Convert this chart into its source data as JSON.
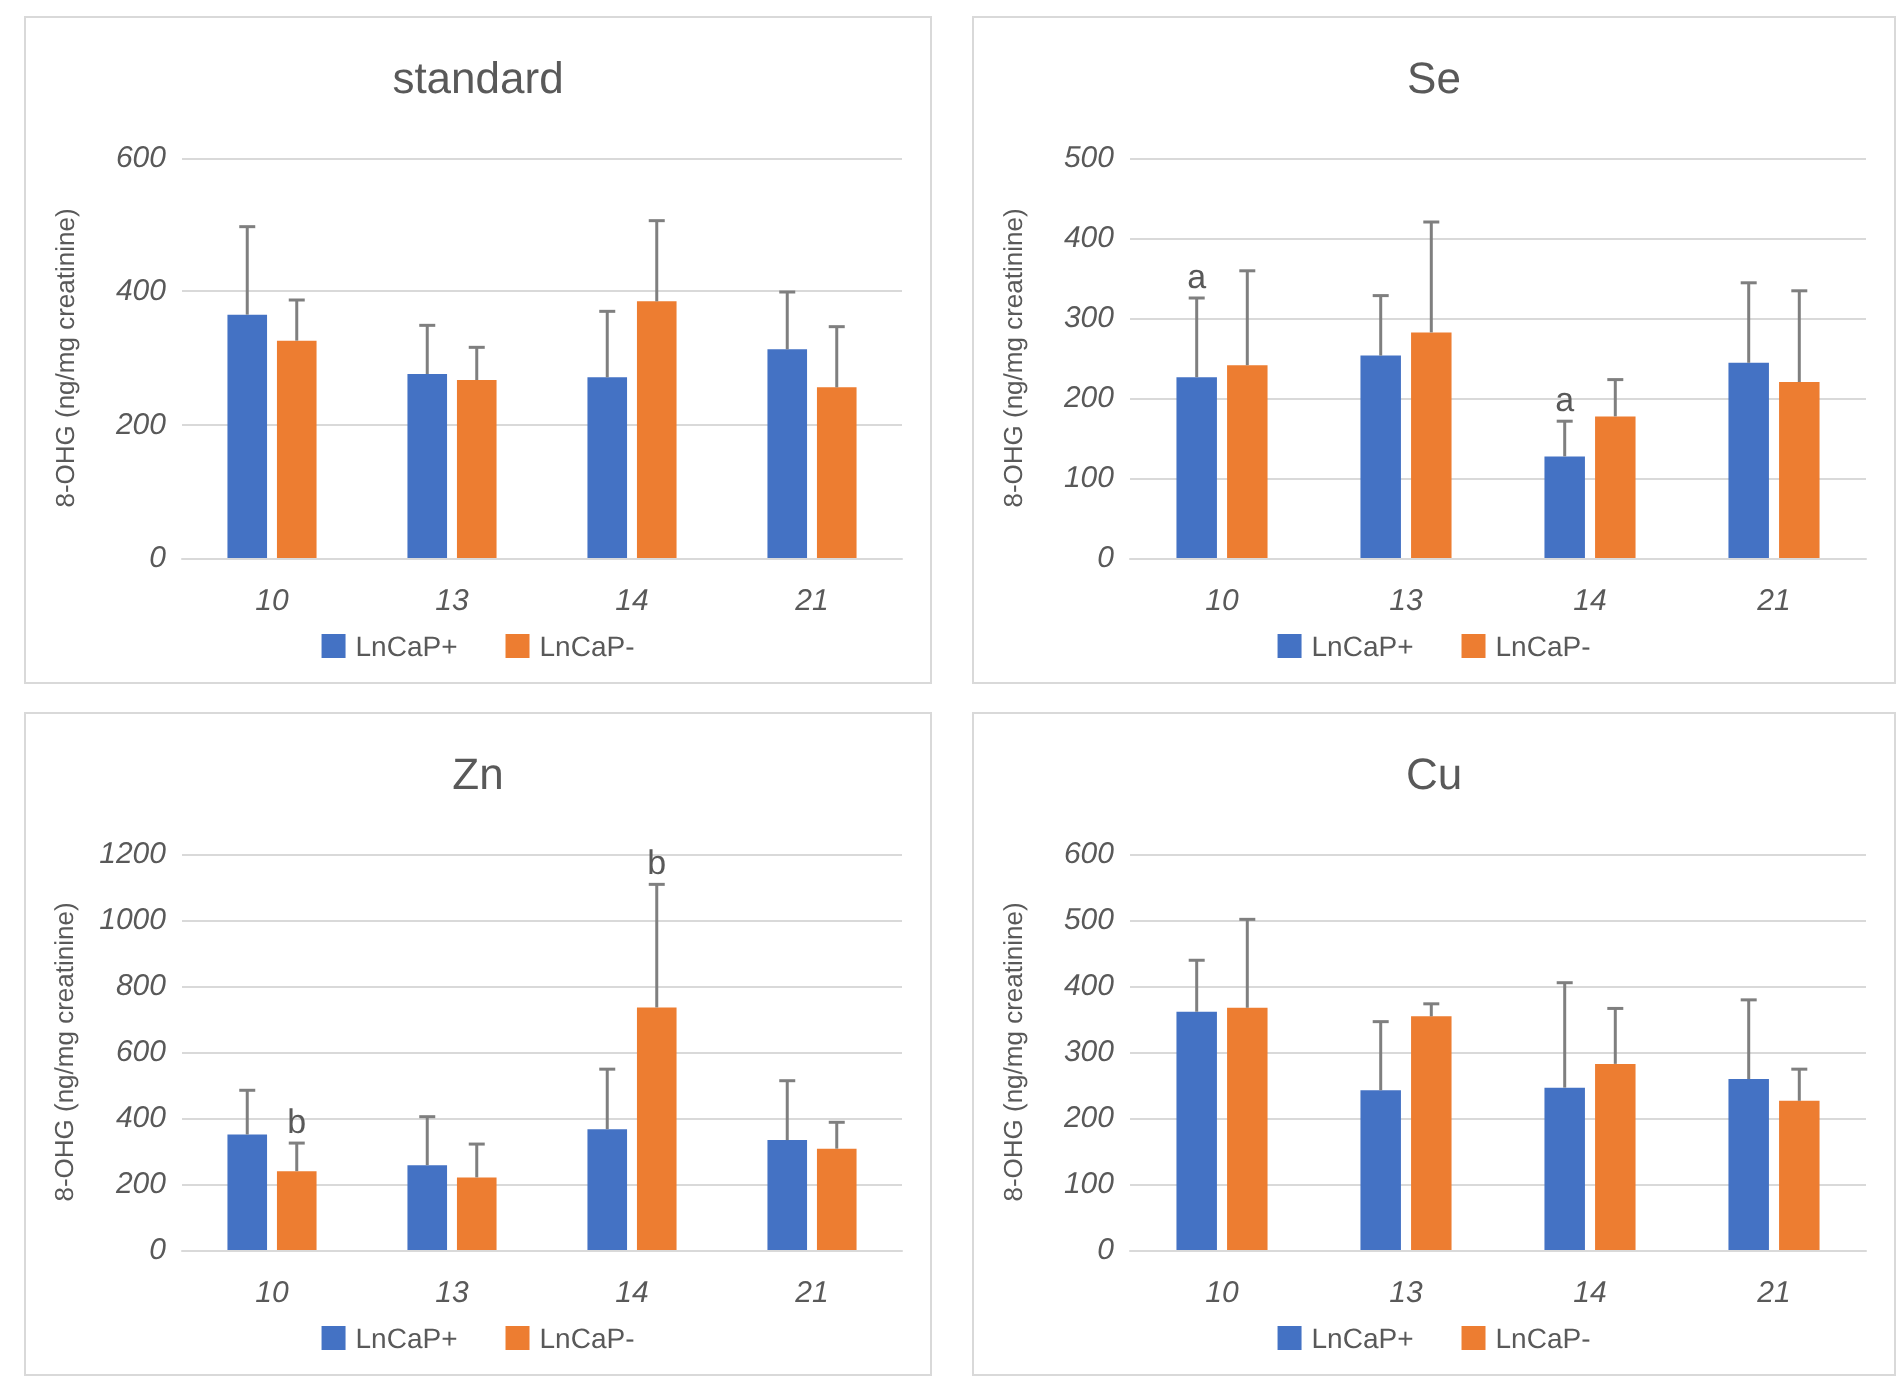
{
  "chart_data": [
    {
      "type": "bar",
      "title": "standard",
      "ylabel": "8-OHG (ng/mg creatinine)",
      "categories": [
        "10",
        "13",
        "14",
        "21"
      ],
      "ylim": [
        0,
        600
      ],
      "yticks": [
        0,
        200,
        400,
        600
      ],
      "grid": "y",
      "legend": "bottom",
      "series": [
        {
          "name": "LnCaP+",
          "color": "#4472c4",
          "values": [
            365,
            276,
            271,
            313
          ],
          "errors": [
            [
              365,
              497
            ],
            [
              276,
              349
            ],
            [
              271,
              370
            ],
            [
              313,
              399
            ]
          ]
        },
        {
          "name": "LnCaP-",
          "color": "#ed7d31",
          "values": [
            326,
            267,
            385,
            256
          ],
          "errors": [
            [
              326,
              387
            ],
            [
              267,
              316
            ],
            [
              385,
              506
            ],
            [
              256,
              347
            ]
          ]
        }
      ]
    },
    {
      "type": "bar",
      "title": "Se",
      "ylabel": "8-OHG (ng/mg creatinine)",
      "categories": [
        "10",
        "13",
        "14",
        "21"
      ],
      "ylim": [
        0,
        500
      ],
      "yticks": [
        0,
        100,
        200,
        300,
        400,
        500
      ],
      "grid": "y",
      "legend": "bottom",
      "annotations": [
        {
          "text": "a",
          "x": "10",
          "y": 226
        },
        {
          "text": "a",
          "x": "14",
          "y": 127
        }
      ],
      "series": [
        {
          "name": "LnCaP+",
          "color": "#4472c4",
          "values": [
            226,
            253,
            127,
            244
          ],
          "errors": [
            [
              226,
              325
            ],
            [
              253,
              328
            ],
            [
              127,
              171
            ],
            [
              244,
              344
            ]
          ]
        },
        {
          "name": "LnCaP-",
          "color": "#ed7d31",
          "values": [
            241,
            282,
            177,
            220
          ],
          "errors": [
            [
              241,
              359
            ],
            [
              282,
              420
            ],
            [
              177,
              223
            ],
            [
              220,
              334
            ]
          ]
        }
      ]
    },
    {
      "type": "bar",
      "title": "Zn",
      "ylabel": "8-OHG (ng/mg creatinine)",
      "categories": [
        "10",
        "13",
        "14",
        "21"
      ],
      "ylim": [
        0,
        1200
      ],
      "yticks": [
        0,
        200,
        400,
        600,
        800,
        1000,
        1200
      ],
      "grid": "y",
      "legend": "bottom",
      "annotations": [
        {
          "text": "b",
          "x": "10",
          "y": 239
        },
        "b"
      ],
      "series": [
        {
          "name": "LnCaP+",
          "color": "#4472c4",
          "values": [
            350,
            257,
            366,
            333
          ],
          "errors": [
            [
              350,
              484
            ],
            [
              257,
              404
            ],
            [
              366,
              548
            ],
            [
              333,
              513
            ]
          ]
        },
        {
          "name": "LnCaP-",
          "color": "#ed7d31",
          "values": [
            239,
            220,
            735,
            307
          ],
          "errors": [
            [
              239,
              324
            ],
            [
              220,
              321
            ],
            [
              735,
              1108
            ],
            [
              307,
              387
            ]
          ]
        }
      ]
    },
    {
      "type": "bar",
      "title": "Cu",
      "ylabel": "8-OHG (ng/mg creatinine)",
      "categories": [
        "10",
        "13",
        "14",
        "21"
      ],
      "ylim": [
        0,
        600
      ],
      "yticks": [
        0,
        100,
        200,
        300,
        400,
        500,
        600
      ],
      "grid": "y",
      "legend": "bottom",
      "series": [
        {
          "name": "LnCaP+",
          "color": "#4472c4",
          "values": [
            361,
            242,
            246,
            259
          ],
          "errors": [
            [
              361,
              439
            ],
            [
              242,
              346
            ],
            [
              246,
              405
            ],
            [
              259,
              379
            ]
          ]
        },
        {
          "name": "LnCaP-",
          "color": "#ed7d31",
          "values": [
            367,
            354,
            282,
            226
          ],
          "errors": [
            [
              367,
              501
            ],
            [
              354,
              373
            ],
            [
              282,
              366
            ],
            [
              226,
              274
            ]
          ]
        }
      ]
    }
  ]
}
